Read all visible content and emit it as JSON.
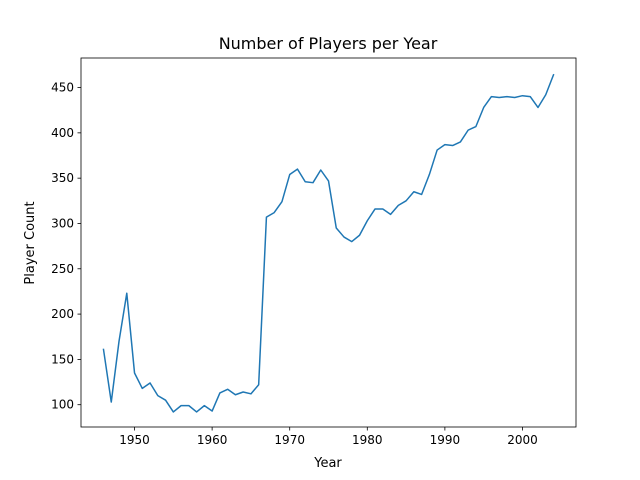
{
  "chart_data": {
    "type": "line",
    "title": "Number of Players per Year",
    "xlabel": "Year",
    "ylabel": "Player Count",
    "xlim": [
      1943.1,
      2006.9
    ],
    "ylim": [
      75.4,
      482.6
    ],
    "xticks": [
      1950,
      1960,
      1970,
      1980,
      1990,
      2000
    ],
    "yticks": [
      100,
      150,
      200,
      250,
      300,
      350,
      400,
      450
    ],
    "grid": false,
    "series": [
      {
        "color": "#1f77b4",
        "x": [
          1946,
          1947,
          1948,
          1949,
          1950,
          1951,
          1952,
          1953,
          1954,
          1955,
          1956,
          1957,
          1958,
          1959,
          1960,
          1961,
          1962,
          1963,
          1964,
          1965,
          1966,
          1967,
          1968,
          1969,
          1970,
          1971,
          1972,
          1973,
          1974,
          1975,
          1976,
          1977,
          1978,
          1979,
          1980,
          1981,
          1982,
          1983,
          1984,
          1985,
          1986,
          1987,
          1988,
          1989,
          1990,
          1991,
          1992,
          1993,
          1994,
          1995,
          1996,
          1997,
          1998,
          1999,
          2000,
          2001,
          2002,
          2003,
          2004
        ],
        "y": [
          161,
          103,
          170,
          223,
          135,
          118,
          124,
          110,
          105,
          92,
          99,
          99,
          92,
          99,
          93,
          113,
          117,
          111,
          114,
          112,
          122,
          307,
          312,
          324,
          354,
          360,
          346,
          345,
          359,
          347,
          295,
          285,
          280,
          287,
          303,
          316,
          316,
          310,
          320,
          325,
          335,
          332,
          354,
          381,
          387,
          386,
          390,
          403,
          407,
          428,
          440,
          439,
          440,
          439,
          441,
          440,
          428,
          442,
          464
        ]
      }
    ]
  }
}
